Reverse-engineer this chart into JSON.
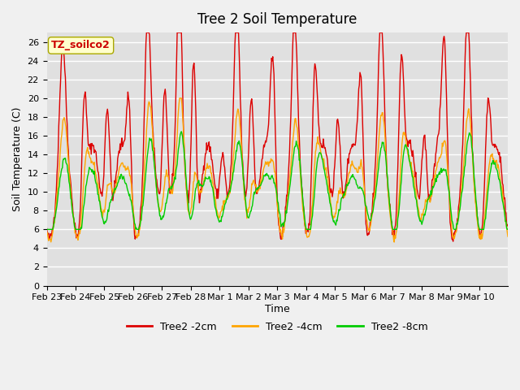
{
  "title": "Tree 2 Soil Temperature",
  "xlabel": "Time",
  "ylabel": "Soil Temperature (C)",
  "annotation": "TZ_soilco2",
  "annotation_color": "#cc0000",
  "annotation_bg": "#ffffcc",
  "ylim": [
    0,
    27
  ],
  "yticks": [
    0,
    2,
    4,
    6,
    8,
    10,
    12,
    14,
    16,
    18,
    20,
    22,
    24,
    26
  ],
  "bg_color": "#e0e0e0",
  "grid_color": "#ffffff",
  "line_2cm_color": "#dd0000",
  "line_4cm_color": "#ffa500",
  "line_8cm_color": "#00cc00",
  "legend_labels": [
    "Tree2 -2cm",
    "Tree2 -4cm",
    "Tree2 -8cm"
  ],
  "num_days": 16,
  "points_per_day": 48,
  "x_tick_labels": [
    "Feb 23",
    "Feb 24",
    "Feb 25",
    "Feb 26",
    "Feb 27",
    "Feb 28",
    "Mar 1",
    "Mar 2",
    "Mar 3",
    "Mar 4",
    "Mar 5",
    "Mar 6",
    "Mar 7",
    "Mar 8",
    "Mar 9",
    "Mar 10"
  ]
}
